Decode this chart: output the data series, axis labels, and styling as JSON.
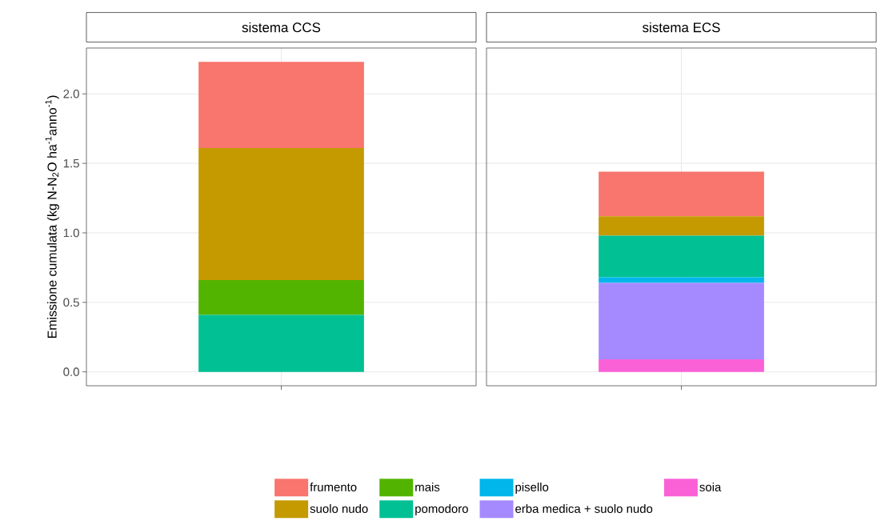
{
  "chart_data": {
    "type": "bar",
    "ylabel": "Emissione cumulata (kg N-N$_{2}$O ha$^{-1}$anno$^{-1}$)",
    "categories": [
      "sistema CCS",
      "sistema ECS"
    ],
    "stacked": true,
    "legend": "bottom",
    "grid": true,
    "ylim": [
      -0.1,
      2.33
    ],
    "yticks": [
      {
        "value": 0,
        "label": "0.0"
      },
      {
        "value": 0.5,
        "label": "0.5"
      },
      {
        "value": 1,
        "label": "1.0"
      },
      {
        "value": 1.5,
        "label": "1.5"
      },
      {
        "value": 2,
        "label": "2.0"
      }
    ],
    "series": [
      {
        "name": "soia",
        "color": "#fb61d7",
        "values": [
          null,
          0.09
        ]
      },
      {
        "name": "erba medica + suolo nudo",
        "color": "#a58aff",
        "values": [
          null,
          0.55
        ]
      },
      {
        "name": "pisello",
        "color": "#00b6eb",
        "values": [
          null,
          0.04
        ]
      },
      {
        "name": "pomodoro",
        "color": "#00c094",
        "values": [
          0.41,
          0.3
        ]
      },
      {
        "name": "mais",
        "color": "#53b400",
        "values": [
          0.25,
          null
        ]
      },
      {
        "name": "suolo nudo",
        "color": "#c49a00",
        "values": [
          0.95,
          0.14
        ]
      },
      {
        "name": "frumento",
        "color": "#f8766d",
        "values": [
          0.62,
          0.32
        ]
      }
    ]
  }
}
